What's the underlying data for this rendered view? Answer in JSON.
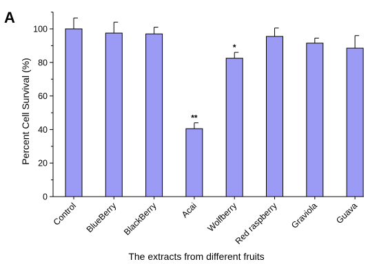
{
  "panel_label": "A",
  "chart_data": {
    "type": "bar",
    "title": "",
    "xlabel": "The extracts from different fruits",
    "ylabel": "Percent Cell Survival (%)",
    "ylim": [
      0,
      110
    ],
    "yticks": [
      0,
      20,
      40,
      60,
      80,
      100
    ],
    "grid": false,
    "bar_color": "#9b9bf5",
    "categories": [
      "Control",
      "BlueBerry",
      "BlackBerry",
      "Acai",
      "Wolfberry",
      "Red raspberry",
      "Graviola",
      "Guava"
    ],
    "values": [
      100,
      97.5,
      97,
      40.5,
      82.5,
      95.5,
      91.5,
      88.5
    ],
    "errors": [
      6.5,
      6.5,
      4,
      3.5,
      3.5,
      5,
      3,
      7.5
    ],
    "annotations": [
      "",
      "",
      "",
      "**",
      "*",
      "",
      "",
      ""
    ]
  }
}
